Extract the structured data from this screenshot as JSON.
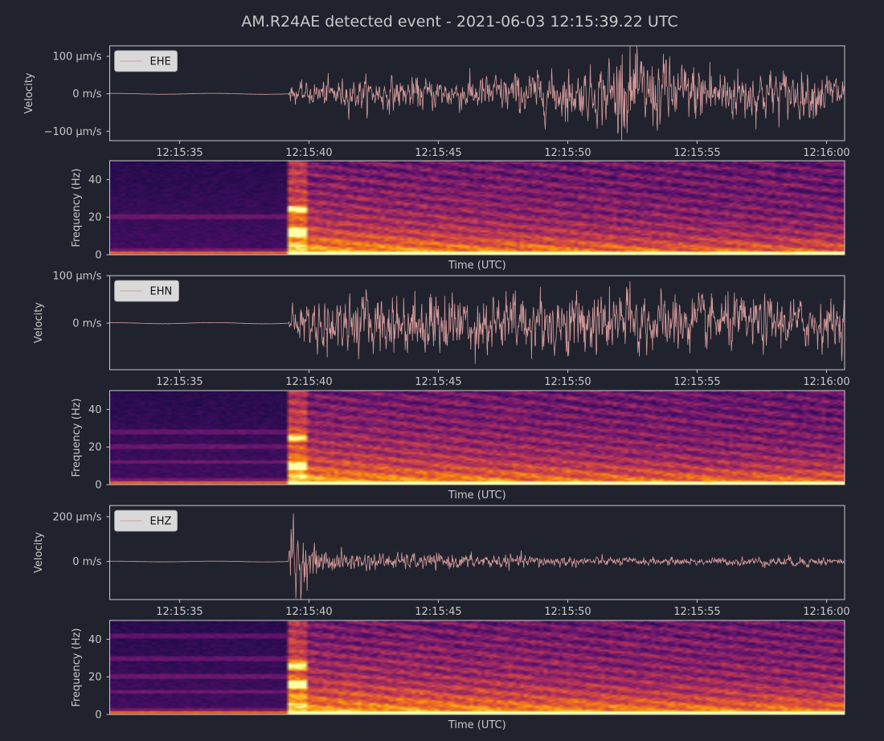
{
  "title": "AM.R24AE detected event - 2021-06-03 12:15:39.22 UTC",
  "colors": {
    "background": "#20232e",
    "trace": "#d59a9a",
    "axis": "#c8c8c8",
    "legend_bg": "#d9d9d9",
    "spectrogram_colormap": "inferno"
  },
  "chart_data": [
    {
      "type": "line",
      "channel": "EHE",
      "legend": "EHE",
      "ylabel": "Velocity",
      "yticks": [
        {
          "value": 100,
          "label": "100 µm/s"
        },
        {
          "value": 0,
          "label": "0 m/s"
        },
        {
          "value": -100,
          "label": "−100 µm/s"
        }
      ],
      "ylim": [
        -125,
        128
      ],
      "y_unit": "µm/s",
      "xticks": [
        "12:15:35",
        "12:15:40",
        "12:15:45",
        "12:15:50",
        "12:15:55",
        "12:16:00"
      ],
      "xtick_seconds": [
        35,
        40,
        45,
        50,
        55,
        60
      ],
      "xlim_seconds": [
        32.3,
        60.7
      ],
      "onset_seconds": 39.2,
      "envelope": [
        [
          32.3,
          1.2
        ],
        [
          39.2,
          1.5
        ],
        [
          39.3,
          18
        ],
        [
          40.5,
          30
        ],
        [
          42,
          35
        ],
        [
          45,
          35
        ],
        [
          48,
          45
        ],
        [
          51,
          55
        ],
        [
          52.3,
          100
        ],
        [
          54,
          70
        ],
        [
          56,
          60
        ],
        [
          58,
          55
        ],
        [
          60.7,
          45
        ]
      ],
      "peaks": [
        [
          52.1,
          105
        ],
        [
          52.3,
          -105
        ],
        [
          51.6,
          95
        ],
        [
          55.5,
          85
        ],
        [
          50,
          -75
        ],
        [
          53.8,
          90
        ]
      ]
    },
    {
      "type": "heatmap",
      "channel": "EHE",
      "ylabel": "Frequency (Hz)",
      "xlabel": "Time (UTC)",
      "yticks": [
        0,
        20,
        40
      ],
      "ylim": [
        0,
        50
      ],
      "xlim_seconds": [
        32.3,
        60.7
      ],
      "onset_seconds": 39.2,
      "pre_event_bands_hz": [
        2,
        20
      ],
      "onset_bursts_hz": [
        [
          24,
          0.55
        ],
        [
          12,
          0.65
        ]
      ],
      "decay_seconds": 14
    },
    {
      "type": "line",
      "channel": "EHN",
      "legend": "EHN",
      "ylabel": "Velocity",
      "yticks": [
        {
          "value": 100,
          "label": "100 µm/s"
        },
        {
          "value": 0,
          "label": "0 m/s"
        }
      ],
      "ylim": [
        -98,
        100
      ],
      "y_unit": "µm/s",
      "xticks": [
        "12:15:35",
        "12:15:40",
        "12:15:45",
        "12:15:50",
        "12:15:55",
        "12:16:00"
      ],
      "xtick_seconds": [
        35,
        40,
        45,
        50,
        55,
        60
      ],
      "xlim_seconds": [
        32.3,
        60.7
      ],
      "onset_seconds": 39.2,
      "envelope": [
        [
          32.3,
          1.2
        ],
        [
          39.2,
          1.5
        ],
        [
          39.3,
          25
        ],
        [
          40.5,
          45
        ],
        [
          42,
          50
        ],
        [
          45,
          55
        ],
        [
          48,
          52
        ],
        [
          51,
          55
        ],
        [
          54,
          50
        ],
        [
          57,
          45
        ],
        [
          60.7,
          40
        ]
      ],
      "peaks": [
        [
          52.4,
          88
        ],
        [
          40.7,
          -72
        ],
        [
          44.7,
          62
        ],
        [
          50,
          -70
        ]
      ]
    },
    {
      "type": "heatmap",
      "channel": "EHN",
      "ylabel": "Frequency (Hz)",
      "xlabel": "Time (UTC)",
      "yticks": [
        0,
        20,
        40
      ],
      "ylim": [
        0,
        50
      ],
      "xlim_seconds": [
        32.3,
        60.7
      ],
      "onset_seconds": 39.2,
      "pre_event_bands_hz": [
        2,
        12,
        20,
        28
      ],
      "onset_bursts_hz": [
        [
          10,
          0.6
        ],
        [
          25,
          0.45
        ]
      ],
      "decay_seconds": 16
    },
    {
      "type": "line",
      "channel": "EHZ",
      "legend": "EHZ",
      "ylabel": "Velocity",
      "yticks": [
        {
          "value": 200,
          "label": "200 µm/s"
        },
        {
          "value": 0,
          "label": "0 m/s"
        }
      ],
      "ylim": [
        -170,
        250
      ],
      "y_unit": "µm/s",
      "xticks": [
        "12:15:35",
        "12:15:40",
        "12:15:45",
        "12:15:50",
        "12:15:55",
        "12:16:00"
      ],
      "xtick_seconds": [
        35,
        40,
        45,
        50,
        55,
        60
      ],
      "xlim_seconds": [
        32.3,
        60.7
      ],
      "onset_seconds": 39.2,
      "envelope": [
        [
          32.3,
          1.5
        ],
        [
          39.2,
          2
        ],
        [
          39.3,
          150
        ],
        [
          39.6,
          120
        ],
        [
          40,
          60
        ],
        [
          41,
          38
        ],
        [
          43,
          30
        ],
        [
          45,
          28
        ],
        [
          48,
          25
        ],
        [
          51,
          17
        ],
        [
          54,
          14
        ],
        [
          57,
          16
        ],
        [
          59,
          20
        ],
        [
          60.7,
          12
        ]
      ],
      "peaks": [
        [
          39.4,
          215
        ],
        [
          39.5,
          -165
        ],
        [
          39.3,
          145
        ]
      ]
    },
    {
      "type": "heatmap",
      "channel": "EHZ",
      "ylabel": "Frequency (Hz)",
      "xlabel": "Time (UTC)",
      "yticks": [
        0,
        20,
        40
      ],
      "ylim": [
        0,
        50
      ],
      "xlim_seconds": [
        32.3,
        60.7
      ],
      "onset_seconds": 39.2,
      "pre_event_bands_hz": [
        2,
        12,
        20,
        30,
        42
      ],
      "onset_bursts_hz": [
        [
          16,
          0.85
        ],
        [
          26,
          0.6
        ]
      ],
      "decay_seconds": 28
    }
  ]
}
